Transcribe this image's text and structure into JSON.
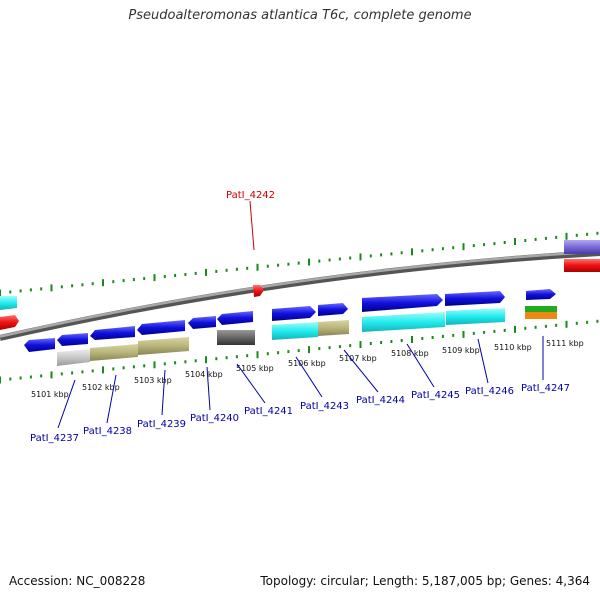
{
  "title": "Pseudoalteromonas atlantica T6c, complete genome",
  "footer": {
    "accession": "Accession: NC_008228",
    "stats": "Topology: circular; Length: 5,187,005 bp; Genes: 4,364"
  },
  "map": {
    "highlight_tag": "PatI_4242",
    "kbp_labels": [
      "5101 kbp",
      "5102 kbp",
      "5103 kbp",
      "5104 kbp",
      "5105 kbp",
      "5106 kbp",
      "5107 kbp",
      "5108 kbp",
      "5109 kbp",
      "5110 kbp",
      "5111 kbp"
    ],
    "gene_tags": [
      "PatI_4237",
      "PatI_4238",
      "PatI_4239",
      "PatI_4240",
      "PatI_4241",
      "PatI_4243",
      "PatI_4244",
      "PatI_4245",
      "PatI_4246",
      "PatI_4247"
    ],
    "colors": {
      "gene": "#1010dd",
      "cds_tan": "#b8b47a",
      "cds_cyan": "#22ecee",
      "cds_gray": "#c8c8c8",
      "cds_dark": "#666666",
      "highlight": "#ee1111",
      "tick": "#1a8a1a",
      "backbone": "#8a8a8a"
    }
  }
}
